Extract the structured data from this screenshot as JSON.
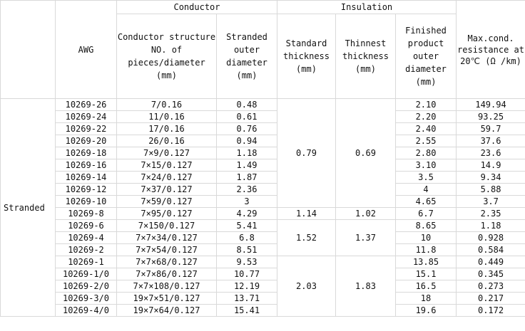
{
  "header": {
    "type_blank": "",
    "awg": "AWG",
    "conductor_group": "Conductor",
    "insulation_group": "Insulation",
    "conductor_structure": "Conductor structure NO. of pieces/diameter (mm)",
    "stranded_outer_diameter": "Stranded outer diameter (mm)",
    "standard_thickness": "Standard thickness (mm)",
    "thinnest_thickness": "Thinnest thickness (mm)",
    "finished_od": "Finished product outer diameter (mm)",
    "max_resistance": "Max.cond. resistance at 20℃ (Ω /km)"
  },
  "type_label": "Stranded",
  "rows": [
    {
      "awg": "10269-26",
      "structure": "7/0.16",
      "stranded_od": "0.48",
      "finished_od": "2.10",
      "resistance": "149.94"
    },
    {
      "awg": "10269-24",
      "structure": "11/0.16",
      "stranded_od": "0.61",
      "finished_od": "2.20",
      "resistance": "93.25"
    },
    {
      "awg": "10269-22",
      "structure": "17/0.16",
      "stranded_od": "0.76",
      "finished_od": "2.40",
      "resistance": "59.7"
    },
    {
      "awg": "10269-20",
      "structure": "26/0.16",
      "stranded_od": "0.94",
      "finished_od": "2.55",
      "resistance": "37.6"
    },
    {
      "awg": "10269-18",
      "structure": "7×9/0.127",
      "stranded_od": "1.18",
      "finished_od": "2.80",
      "resistance": "23.6"
    },
    {
      "awg": "10269-16",
      "structure": "7×15/0.127",
      "stranded_od": "1.49",
      "finished_od": "3.10",
      "resistance": "14.9"
    },
    {
      "awg": "10269-14",
      "structure": "7×24/0.127",
      "stranded_od": "1.87",
      "finished_od": "3.5",
      "resistance": "9.34"
    },
    {
      "awg": "10269-12",
      "structure": "7×37/0.127",
      "stranded_od": "2.36",
      "finished_od": "4",
      "resistance": "5.88"
    },
    {
      "awg": "10269-10",
      "structure": "7×59/0.127",
      "stranded_od": "3",
      "finished_od": "4.65",
      "resistance": "3.7"
    },
    {
      "awg": "10269-8",
      "structure": "7×95/0.127",
      "stranded_od": "4.29",
      "finished_od": "6.7",
      "resistance": "2.35"
    },
    {
      "awg": "10269-6",
      "structure": "7×150/0.127",
      "stranded_od": "5.41",
      "finished_od": "8.65",
      "resistance": "1.18"
    },
    {
      "awg": "10269-4",
      "structure": "7×7×34/0.127",
      "stranded_od": "6.8",
      "finished_od": "10",
      "resistance": "0.928"
    },
    {
      "awg": "10269-2",
      "structure": "7×7×54/0.127",
      "stranded_od": "8.51",
      "finished_od": "11.8",
      "resistance": "0.584"
    },
    {
      "awg": "10269-1",
      "structure": "7×7×68/0.127",
      "stranded_od": "9.53",
      "finished_od": "13.85",
      "resistance": "0.449"
    },
    {
      "awg": "10269-1/0",
      "structure": "7×7×86/0.127",
      "stranded_od": "10.77",
      "finished_od": "15.1",
      "resistance": "0.345"
    },
    {
      "awg": "10269-2/0",
      "structure": "7×7×108/0.127",
      "stranded_od": "12.19",
      "finished_od": "16.5",
      "resistance": "0.273"
    },
    {
      "awg": "10269-3/0",
      "structure": "19×7×51/0.127",
      "stranded_od": "13.71",
      "finished_od": "18",
      "resistance": "0.217"
    },
    {
      "awg": "10269-4/0",
      "structure": "19×7×64/0.127",
      "stranded_od": "15.41",
      "finished_od": "19.6",
      "resistance": "0.172"
    }
  ],
  "insulation_groups": [
    {
      "standard": "0.79",
      "thinnest": "0.69"
    },
    {
      "standard": "1.14",
      "thinnest": "1.02"
    },
    {
      "standard": "1.52",
      "thinnest": "1.37"
    },
    {
      "standard": "2.03",
      "thinnest": "1.83"
    }
  ]
}
